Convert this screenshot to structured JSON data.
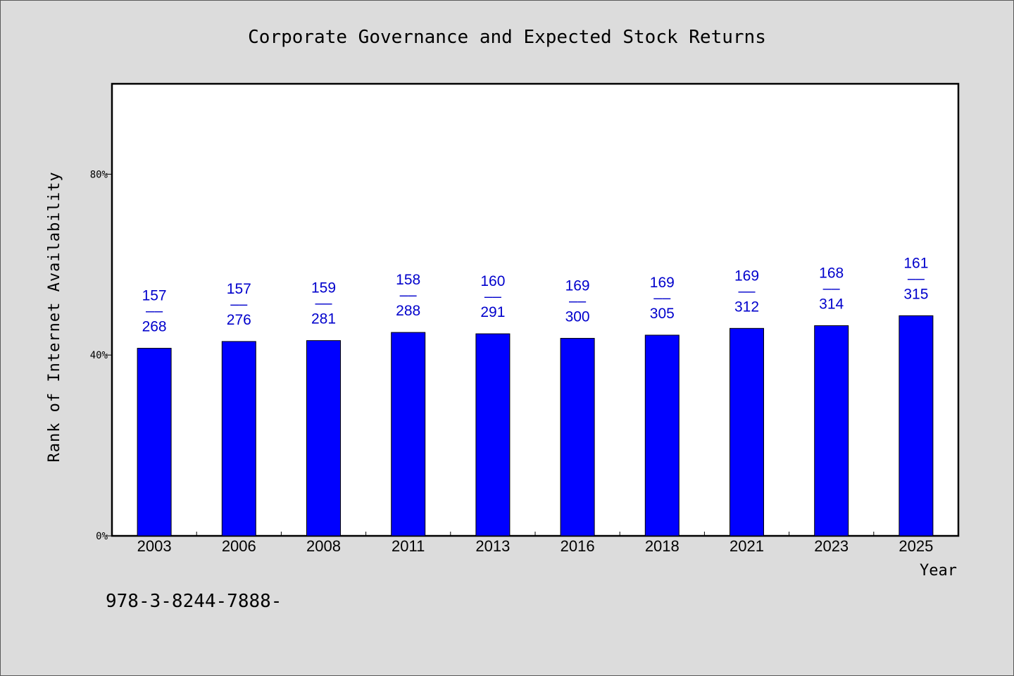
{
  "chart_data": {
    "type": "bar",
    "title": "Corporate Governance and Expected Stock Returns",
    "xlabel": "Year",
    "ylabel": "Rank of Internet Availability",
    "ylim": [
      0,
      100
    ],
    "yticks": [
      0,
      40,
      80
    ],
    "ytick_labels": [
      "0%",
      "40%",
      "80%"
    ],
    "categories": [
      "2003",
      "2006",
      "2008",
      "2011",
      "2013",
      "2016",
      "2018",
      "2021",
      "2023",
      "2025"
    ],
    "series": [
      {
        "color": "#0000ff",
        "values": [
          41.5,
          43.0,
          43.2,
          45.0,
          44.7,
          43.7,
          44.4,
          45.9,
          46.5,
          48.7
        ]
      }
    ],
    "data_labels": [
      {
        "top": "157",
        "sep": "——",
        "bottom": "268"
      },
      {
        "top": "157",
        "sep": "——",
        "bottom": "276"
      },
      {
        "top": "159",
        "sep": "——",
        "bottom": "281"
      },
      {
        "top": "158",
        "sep": "——",
        "bottom": "288"
      },
      {
        "top": "160",
        "sep": "——",
        "bottom": "291"
      },
      {
        "top": "169",
        "sep": "——",
        "bottom": "300"
      },
      {
        "top": "169",
        "sep": "——",
        "bottom": "305"
      },
      {
        "top": "169",
        "sep": "——",
        "bottom": "312"
      },
      {
        "top": "168",
        "sep": "——",
        "bottom": "314"
      },
      {
        "top": "161",
        "sep": "——",
        "bottom": "315"
      }
    ],
    "grid": false,
    "legend": "none"
  },
  "footnote": "978-3-8244-7888-",
  "colors": {
    "background": "#dcdcdc",
    "plot_background": "#ffffff",
    "bar": "#0000ff",
    "data_label": "#0000cc"
  }
}
